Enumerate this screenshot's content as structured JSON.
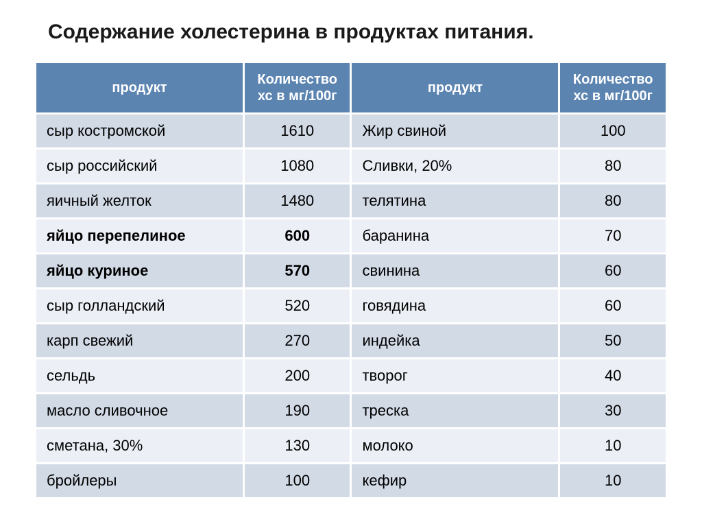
{
  "title": "Содержание холестерина в продуктах питания.",
  "table": {
    "headers": {
      "product": "продукт",
      "value": "Количество хс в мг/100г"
    },
    "rows": [
      {
        "p1": "сыр костромской",
        "v1": "1610",
        "p2": "Жир свиной",
        "v2": "100",
        "bold": false
      },
      {
        "p1": "сыр российский",
        "v1": "1080",
        "p2": "Сливки, 20%",
        "v2": "80",
        "bold": false
      },
      {
        "p1": "яичный желток",
        "v1": "1480",
        "p2": "телятина",
        "v2": "80",
        "bold": false
      },
      {
        "p1": "яйцо перепелиное",
        "v1": "600",
        "p2": "баранина",
        "v2": "70",
        "bold": true
      },
      {
        "p1": "яйцо куриное",
        "v1": "570",
        "p2": "свинина",
        "v2": "60",
        "bold": true
      },
      {
        "p1": "сыр голландский",
        "v1": "520",
        "p2": "говядина",
        "v2": "60",
        "bold": false
      },
      {
        "p1": "карп свежий",
        "v1": "270",
        "p2": "индейка",
        "v2": "50",
        "bold": false
      },
      {
        "p1": "сельдь",
        "v1": "200",
        "p2": "творог",
        "v2": "40",
        "bold": false
      },
      {
        "p1": "масло сливочное",
        "v1": "190",
        "p2": "треска",
        "v2": "30",
        "bold": false
      },
      {
        "p1": "сметана, 30%",
        "v1": "130",
        "p2": "молоко",
        "v2": "10",
        "bold": false
      },
      {
        "p1": "бройлеры",
        "v1": "100",
        "p2": "кефир",
        "v2": "10",
        "bold": false
      }
    ],
    "colors": {
      "header_bg": "#5b84b1",
      "header_text": "#ffffff",
      "row_odd_bg": "#d2dae6",
      "row_even_bg": "#ecf0f6",
      "border": "#ffffff",
      "text": "#1a1a1a"
    },
    "fonts": {
      "title_size": 30,
      "header_size": 20,
      "cell_size": 22
    }
  }
}
